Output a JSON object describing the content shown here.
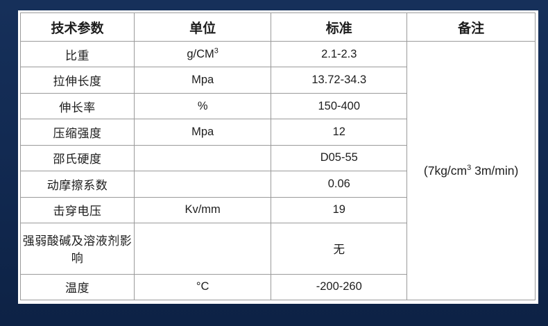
{
  "page": {
    "background_color": "#122a52",
    "frame_color": "#ffffff",
    "border_color": "#9a9a9a",
    "text_color": "#1d1d1d"
  },
  "table": {
    "headers": [
      {
        "label": "技术参数"
      },
      {
        "label": "单位"
      },
      {
        "label": "标准"
      },
      {
        "label": "备注"
      }
    ],
    "rows": [
      {
        "param": "比重",
        "unit": "g/CM",
        "unit_sup": "3",
        "standard": "2.1-2.3"
      },
      {
        "param": "拉伸长度",
        "unit": "Mpa",
        "unit_sup": "",
        "standard": "13.72-34.3"
      },
      {
        "param": "伸长率",
        "unit": "%",
        "unit_sup": "",
        "standard": "150-400"
      },
      {
        "param": "压缩强度",
        "unit": "Mpa",
        "unit_sup": "",
        "standard": "12"
      },
      {
        "param": "邵氏硬度",
        "unit": "",
        "unit_sup": "",
        "standard": "D05-55"
      },
      {
        "param": "动摩擦系数",
        "unit": "",
        "unit_sup": "",
        "standard": "0.06"
      },
      {
        "param": "击穿电压",
        "unit": "Kv/mm",
        "unit_sup": "",
        "standard": "19"
      },
      {
        "param": "强弱酸碱及溶液剂影响",
        "unit": "",
        "unit_sup": "",
        "standard": "无"
      },
      {
        "param": "温度",
        "unit": "°C",
        "unit_sup": "",
        "standard": "-200-260"
      }
    ],
    "remark": {
      "prefix": "(7kg/cm",
      "sup": "3",
      "suffix": " 3m/min)"
    }
  }
}
